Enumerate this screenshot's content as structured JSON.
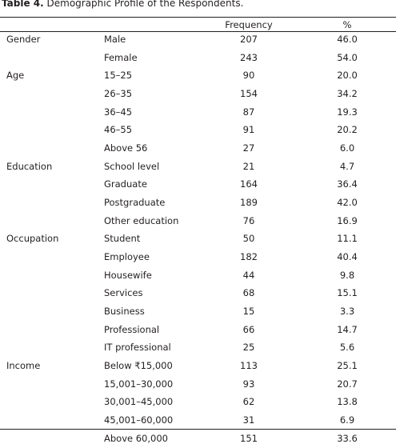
{
  "title": {
    "label": "Table 4.",
    "text": "Demographic Profile of the Respondents."
  },
  "table": {
    "header": [
      "Frequency",
      "%"
    ],
    "groups": [
      {
        "name": "Gender",
        "rows": [
          {
            "label": "Male",
            "frequency": 207,
            "percent": "46.0"
          },
          {
            "label": "Female",
            "frequency": 243,
            "percent": "54.0"
          }
        ]
      },
      {
        "name": "Age",
        "rows": [
          {
            "label": "15–25",
            "frequency": 90,
            "percent": "20.0"
          },
          {
            "label": "26–35",
            "frequency": 154,
            "percent": "34.2"
          },
          {
            "label": "36–45",
            "frequency": 87,
            "percent": "19.3"
          },
          {
            "label": "46–55",
            "frequency": 91,
            "percent": "20.2"
          },
          {
            "label": "Above 56",
            "frequency": 27,
            "percent": "6.0"
          }
        ]
      },
      {
        "name": "Education",
        "rows": [
          {
            "label": "School level",
            "frequency": 21,
            "percent": "4.7"
          },
          {
            "label": "Graduate",
            "frequency": 164,
            "percent": "36.4"
          },
          {
            "label": "Postgraduate",
            "frequency": 189,
            "percent": "42.0"
          },
          {
            "label": "Other education",
            "frequency": 76,
            "percent": "16.9"
          }
        ]
      },
      {
        "name": "Occupation",
        "rows": [
          {
            "label": "Student",
            "frequency": 50,
            "percent": "11.1"
          },
          {
            "label": "Employee",
            "frequency": 182,
            "percent": "40.4"
          },
          {
            "label": "Housewife",
            "frequency": 44,
            "percent": "9.8"
          },
          {
            "label": "Services",
            "frequency": 68,
            "percent": "15.1"
          },
          {
            "label": "Business",
            "frequency": 15,
            "percent": "3.3"
          },
          {
            "label": "Professional",
            "frequency": 66,
            "percent": "14.7"
          },
          {
            "label": "IT professional",
            "frequency": 25,
            "percent": "5.6"
          }
        ]
      },
      {
        "name": "Income",
        "rows": [
          {
            "label": "Below ₹15,000",
            "frequency": 113,
            "percent": "25.1"
          },
          {
            "label": "15,001–30,000",
            "frequency": 93,
            "percent": "20.7"
          },
          {
            "label": "30,001–45,000",
            "frequency": 62,
            "percent": "13.8"
          },
          {
            "label": "45,001–60,000",
            "frequency": 31,
            "percent": "6.9"
          },
          {
            "label": "Above 60,000",
            "frequency": 151,
            "percent": "33.6"
          }
        ]
      }
    ]
  }
}
